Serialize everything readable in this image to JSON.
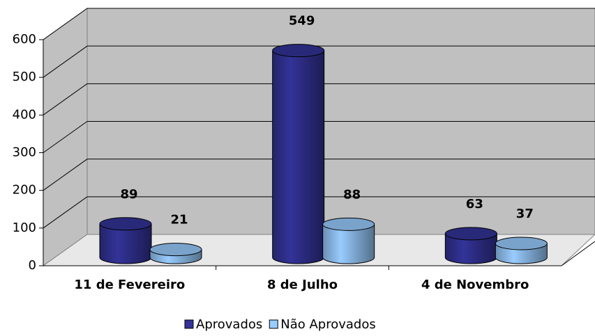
{
  "chart_data": {
    "type": "bar3d",
    "categories": [
      "11 de Fevereiro",
      "8 de Julho",
      "4 de Novembro"
    ],
    "series": [
      {
        "name": "Aprovados",
        "color": "#333399",
        "values": [
          89,
          549,
          63
        ]
      },
      {
        "name": "Não Aprovados",
        "color": "#99ccff",
        "values": [
          21,
          88,
          37
        ]
      }
    ],
    "ylim": [
      0,
      600
    ],
    "yticks": [
      0,
      100,
      200,
      300,
      400,
      500,
      600
    ],
    "grid": true,
    "legend": "bottom"
  }
}
